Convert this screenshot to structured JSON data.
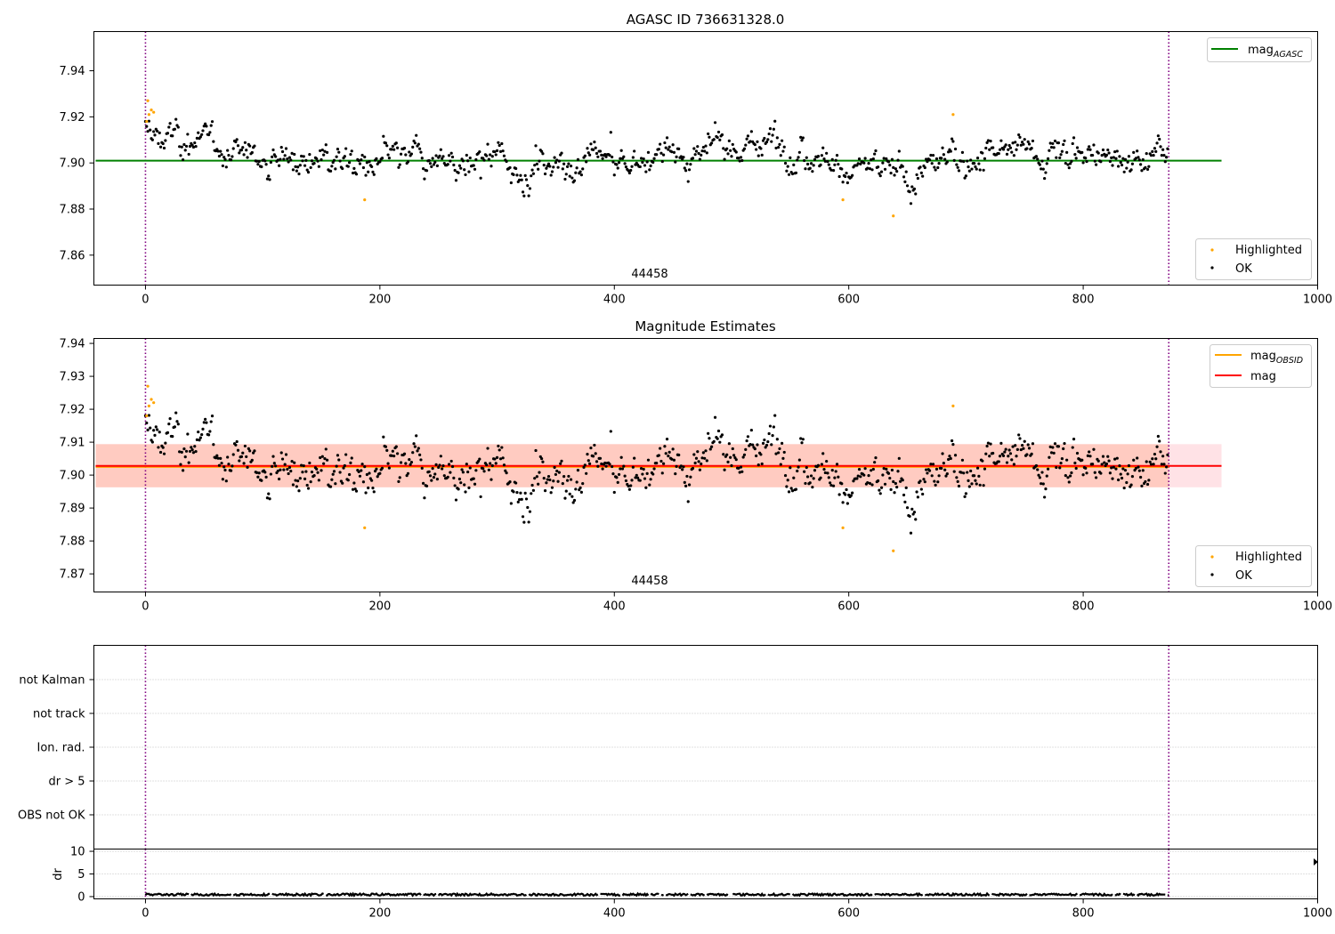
{
  "chart_data": [
    {
      "type": "scatter",
      "title": "AGASC ID 736631328.0",
      "xlabel": "",
      "ylabel": "",
      "xlim": [
        -44,
        1000
      ],
      "ylim": [
        7.847,
        7.957
      ],
      "x_ticks": [
        "0",
        "200",
        "400",
        "600",
        "800",
        "1000"
      ],
      "y_ticks": [
        "7.86",
        "7.88",
        "7.90",
        "7.92",
        "7.94"
      ],
      "grid": false,
      "obsid_label": "44458",
      "vertical_lines": [
        0,
        873
      ],
      "reference_lines": [
        {
          "name": "mag_AGASC",
          "label_main": "mag",
          "label_sub": "AGASC",
          "value": 7.901,
          "color": "#008000",
          "x_range": [
            0,
            918
          ]
        }
      ],
      "point_series": [
        {
          "name": "Highlighted",
          "color": "#FFA500"
        },
        {
          "name": "OK",
          "color": "#000000"
        }
      ],
      "points_count_ok": 873,
      "highlighted_points": [
        [
          1,
          7.918
        ],
        [
          2,
          7.927
        ],
        [
          3,
          7.921
        ],
        [
          5,
          7.923
        ],
        [
          7,
          7.922
        ],
        [
          187,
          7.884
        ],
        [
          595,
          7.884
        ],
        [
          638,
          7.877
        ],
        [
          689,
          7.921
        ]
      ],
      "ok_trend_knots": [
        [
          0,
          7.913
        ],
        [
          30,
          7.91
        ],
        [
          60,
          7.906
        ],
        [
          100,
          7.903
        ],
        [
          150,
          7.901
        ],
        [
          190,
          7.899
        ],
        [
          230,
          7.901
        ],
        [
          270,
          7.898
        ],
        [
          330,
          7.899
        ],
        [
          400,
          7.9
        ],
        [
          450,
          7.904
        ],
        [
          500,
          7.905
        ],
        [
          545,
          7.911
        ],
        [
          580,
          7.903
        ],
        [
          620,
          7.896
        ],
        [
          660,
          7.897
        ],
        [
          690,
          7.901
        ],
        [
          720,
          7.905
        ],
        [
          760,
          7.905
        ],
        [
          800,
          7.904
        ],
        [
          840,
          7.902
        ],
        [
          873,
          7.903
        ]
      ],
      "legend_lines_position": "upper right",
      "legend_points_position": "lower right"
    },
    {
      "type": "scatter",
      "title": "Magnitude Estimates",
      "xlabel": "",
      "ylabel": "",
      "xlim": [
        -44,
        1000
      ],
      "ylim": [
        7.8645,
        7.9415
      ],
      "x_ticks": [
        "0",
        "200",
        "400",
        "600",
        "800",
        "1000"
      ],
      "y_ticks": [
        "7.87",
        "7.88",
        "7.89",
        "7.90",
        "7.91",
        "7.92",
        "7.93",
        "7.94"
      ],
      "grid": false,
      "obsid_label": "44458",
      "vertical_lines": [
        0,
        873
      ],
      "reference_lines": [
        {
          "name": "mag_OBSID",
          "label_main": "mag",
          "label_sub": "OBSID",
          "value": 7.9025,
          "color": "#FFA500",
          "x_range": [
            0,
            873
          ]
        },
        {
          "name": "mag",
          "label_main": "mag",
          "label_sub": "",
          "value": 7.9028,
          "color": "#FF0000",
          "x_range": [
            0,
            918
          ]
        }
      ],
      "bands": [
        {
          "name": "mag spread",
          "color": "#FFB6C1",
          "range": [
            7.8963,
            7.9094
          ],
          "x_range": [
            0,
            918
          ]
        },
        {
          "name": "mag_OBSID spread",
          "color": "#FFA07A",
          "range": [
            7.8963,
            7.9094
          ],
          "x_range": [
            0,
            873
          ]
        }
      ],
      "point_series": [
        {
          "name": "Highlighted",
          "color": "#FFA500"
        },
        {
          "name": "OK",
          "color": "#000000"
        }
      ],
      "legend_lines_position": "upper right",
      "legend_points_position": "lower right"
    },
    {
      "type": "line",
      "title": "",
      "xlabel": "",
      "ylabel": "",
      "xlim": [
        -44,
        1000
      ],
      "flag_categories": [
        "OBS not OK",
        "dr > 5",
        "Ion. rad.",
        "not track",
        "not Kalman"
      ],
      "grid": true,
      "vertical_lines": [
        0,
        873
      ]
    },
    {
      "type": "line",
      "title": "",
      "xlabel": "",
      "ylabel": "dr",
      "xlim": [
        -44,
        1000
      ],
      "ylim": [
        -0.5,
        10.5
      ],
      "x_ticks": [
        "0",
        "200",
        "400",
        "600",
        "800",
        "1000"
      ],
      "y_ticks": [
        "0",
        "5",
        "10"
      ],
      "grid": true,
      "vertical_lines": [
        0,
        873
      ],
      "series": [
        {
          "name": "",
          "color": "#000000",
          "typical_value": 0.45,
          "x_range": [
            0,
            873
          ]
        }
      ]
    }
  ]
}
